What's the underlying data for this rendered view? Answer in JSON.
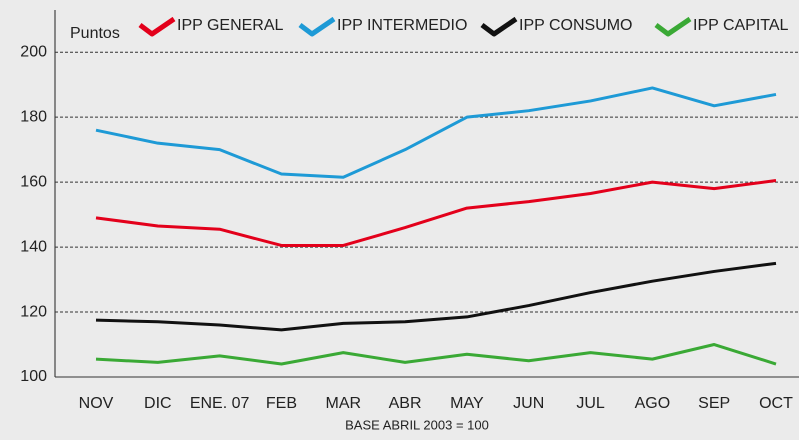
{
  "chart_data": {
    "type": "line",
    "y_label": "Puntos",
    "footer": "BASE ABRIL 2003 = 100",
    "categories": [
      "NOV",
      "DIC",
      "ENE. 07",
      "FEB",
      "MAR",
      "ABR",
      "MAY",
      "JUN",
      "JUL",
      "AGO",
      "SEP",
      "OCT"
    ],
    "series": [
      {
        "name": "IPP GENERAL",
        "color": "#e3001b",
        "values": [
          149,
          146.5,
          145.5,
          140.5,
          140.5,
          146,
          152,
          154,
          156.5,
          160,
          158,
          160.5
        ]
      },
      {
        "name": "IPP INTERMEDIO",
        "color": "#1e9ad6",
        "values": [
          176,
          172,
          170,
          162.5,
          161.5,
          170,
          180,
          182,
          185,
          189,
          183.5,
          187
        ]
      },
      {
        "name": "IPP CONSUMO",
        "color": "#111111",
        "values": [
          117.5,
          117,
          116,
          114.5,
          116.5,
          117,
          118.5,
          122,
          126,
          129.5,
          132.5,
          135
        ]
      },
      {
        "name": "IPP CAPITAL",
        "color": "#3aa935",
        "values": [
          105.5,
          104.5,
          106.5,
          104,
          107.5,
          104.5,
          107,
          105,
          107.5,
          105.5,
          110,
          104
        ]
      }
    ],
    "ylim": [
      100,
      213
    ],
    "yticks": [
      100,
      120,
      140,
      160,
      180,
      200
    ],
    "grid": true
  }
}
